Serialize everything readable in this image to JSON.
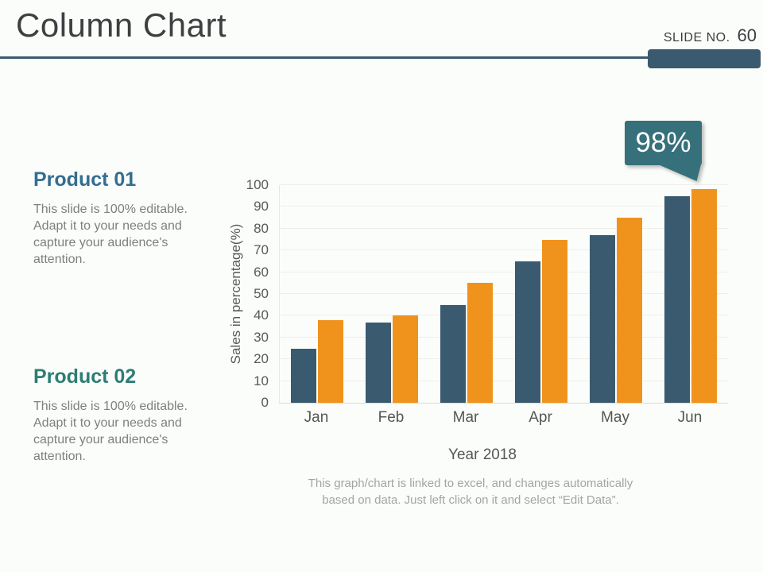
{
  "header": {
    "title": "Column Chart",
    "slide_no_label": "SLIDE NO.",
    "slide_no_value": "60",
    "accent_color": "#3a5a70"
  },
  "products": [
    {
      "heading": "Product 01",
      "heading_color": "#336e91",
      "body": "This slide is 100% editable. Adapt it to your needs and capture your audience's attention."
    },
    {
      "heading": "Product 02",
      "heading_color": "#2e7d74",
      "body": "This slide is 100% editable. Adapt it to your needs and capture your audience's attention."
    }
  ],
  "callout": {
    "label": "98%",
    "color": "#36717b",
    "text_color": "#ffffff"
  },
  "chart_data": {
    "type": "bar",
    "categories": [
      "Jan",
      "Feb",
      "Mar",
      "Apr",
      "May",
      "Jun"
    ],
    "series": [
      {
        "name": "Product 01",
        "color": "#3a5a70",
        "values": [
          25,
          37,
          45,
          65,
          77,
          95
        ]
      },
      {
        "name": "Product 02",
        "color": "#f0931d",
        "values": [
          38,
          40,
          55,
          75,
          85,
          98
        ]
      }
    ],
    "title": "",
    "xlabel": "Year 2018",
    "ylabel": "Sales in percentage(%)",
    "ylim": [
      0,
      100
    ],
    "ytick_step": 10,
    "grid": true,
    "legend_position": "none",
    "annotation": {
      "text": "98%",
      "target": "Jun"
    }
  },
  "footer_note": {
    "lines": [
      "This graph/chart is linked to excel, and changes automatically",
      "based on data. Just left click on it and select “Edit Data”."
    ]
  }
}
